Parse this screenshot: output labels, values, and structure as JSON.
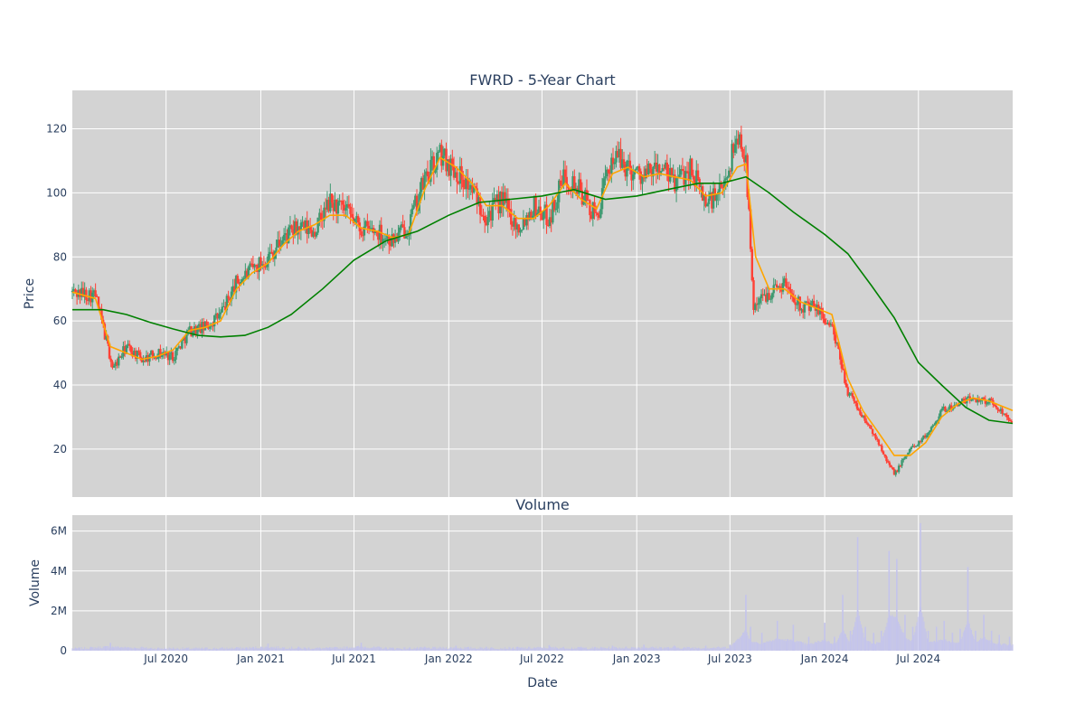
{
  "chart_data": [
    {
      "type": "line",
      "title": "FWRD - 5-Year Chart",
      "ylabel": "Price",
      "ylim": [
        5,
        132
      ],
      "yticks": [
        20,
        40,
        60,
        80,
        100,
        120
      ],
      "grid": true,
      "xrange": [
        "2020-01-01",
        "2024-12-31"
      ],
      "xticks": [
        {
          "date": "2020-07-01",
          "label": "Jul 2020"
        },
        {
          "date": "2021-01-01",
          "label": "Jan 2021"
        },
        {
          "date": "2021-07-01",
          "label": "Jul 2021"
        },
        {
          "date": "2022-01-01",
          "label": "Jan 2022"
        },
        {
          "date": "2022-07-01",
          "label": "Jul 2022"
        },
        {
          "date": "2023-01-01",
          "label": "Jan 2023"
        },
        {
          "date": "2023-07-01",
          "label": "Jul 2023"
        },
        {
          "date": "2024-01-01",
          "label": "Jan 2024"
        },
        {
          "date": "2024-07-01",
          "label": "Jul 2024"
        }
      ],
      "series": [
        {
          "style": "candlestick",
          "dates": [
            "2020-01-01",
            "2020-02-15",
            "2020-03-20",
            "2020-04-15",
            "2020-05-15",
            "2020-06-15",
            "2020-07-15",
            "2020-08-15",
            "2020-09-15",
            "2020-10-15",
            "2020-11-15",
            "2020-12-15",
            "2021-01-15",
            "2021-02-15",
            "2021-03-15",
            "2021-04-15",
            "2021-05-15",
            "2021-06-15",
            "2021-07-15",
            "2021-08-15",
            "2021-09-15",
            "2021-10-15",
            "2021-11-15",
            "2021-12-15",
            "2022-01-15",
            "2022-02-15",
            "2022-03-15",
            "2022-04-15",
            "2022-05-15",
            "2022-06-15",
            "2022-07-15",
            "2022-08-15",
            "2022-09-15",
            "2022-10-15",
            "2022-11-15",
            "2022-12-15",
            "2023-01-15",
            "2023-02-15",
            "2023-03-15",
            "2023-04-15",
            "2023-05-15",
            "2023-06-15",
            "2023-07-15",
            "2023-08-01",
            "2023-08-15",
            "2023-09-15",
            "2023-10-15",
            "2023-11-15",
            "2023-12-15",
            "2024-01-15",
            "2024-02-15",
            "2024-03-15",
            "2024-04-15",
            "2024-05-15",
            "2024-06-15",
            "2024-07-15",
            "2024-08-15",
            "2024-09-15",
            "2024-10-15",
            "2024-11-15",
            "2024-12-31"
          ],
          "values": [
            69,
            68,
            45,
            52,
            48,
            50,
            49,
            57,
            58,
            62,
            72,
            76,
            80,
            86,
            89,
            88,
            97,
            94,
            89,
            88,
            85,
            90,
            104,
            112,
            107,
            101,
            93,
            98,
            89,
            96,
            92,
            106,
            100,
            92,
            112,
            108,
            105,
            108,
            103,
            108,
            97,
            100,
            118,
            112,
            65,
            69,
            72,
            65,
            64,
            58,
            38,
            30,
            22,
            12,
            20,
            24,
            32,
            34,
            36,
            35,
            29
          ]
        },
        {
          "name": "",
          "style": "ma-short",
          "color": "#ffa500",
          "dates": [
            "2020-01-01",
            "2020-02-15",
            "2020-03-15",
            "2020-04-15",
            "2020-05-15",
            "2020-06-15",
            "2020-07-15",
            "2020-08-15",
            "2020-09-15",
            "2020-10-15",
            "2020-11-15",
            "2020-12-15",
            "2021-01-15",
            "2021-02-15",
            "2021-03-15",
            "2021-04-15",
            "2021-05-15",
            "2021-06-15",
            "2021-07-15",
            "2021-08-15",
            "2021-09-15",
            "2021-10-15",
            "2021-11-15",
            "2021-12-15",
            "2022-01-15",
            "2022-02-15",
            "2022-03-15",
            "2022-04-15",
            "2022-05-15",
            "2022-06-15",
            "2022-07-15",
            "2022-08-15",
            "2022-09-15",
            "2022-10-15",
            "2022-11-15",
            "2022-12-15",
            "2023-01-15",
            "2023-02-15",
            "2023-03-15",
            "2023-04-15",
            "2023-05-15",
            "2023-06-15",
            "2023-07-15",
            "2023-08-01",
            "2023-08-20",
            "2023-09-15",
            "2023-10-15",
            "2023-11-15",
            "2023-12-15",
            "2024-01-15",
            "2024-02-15",
            "2024-03-15",
            "2024-04-15",
            "2024-05-15",
            "2024-06-15",
            "2024-07-15",
            "2024-08-15",
            "2024-09-15",
            "2024-10-15",
            "2024-11-15",
            "2024-12-31"
          ],
          "values": [
            69,
            67,
            52,
            50,
            48,
            49,
            51,
            57,
            58,
            60,
            70,
            75,
            78,
            84,
            88,
            90,
            93,
            93,
            89,
            88,
            86,
            87,
            101,
            111,
            108,
            103,
            96,
            96,
            92,
            92,
            96,
            103,
            98,
            95,
            106,
            108,
            105,
            106,
            105,
            104,
            99,
            100,
            108,
            109,
            80,
            70,
            70,
            66,
            64,
            62,
            42,
            32,
            25,
            18,
            18,
            22,
            30,
            34,
            36,
            35,
            32
          ]
        },
        {
          "name": "",
          "style": "ma-long",
          "color": "#008000",
          "dates": [
            "2020-01-01",
            "2020-03-01",
            "2020-04-15",
            "2020-06-01",
            "2020-07-15",
            "2020-09-01",
            "2020-10-15",
            "2020-12-01",
            "2021-01-15",
            "2021-03-01",
            "2021-05-01",
            "2021-07-01",
            "2021-09-01",
            "2021-11-01",
            "2022-01-01",
            "2022-03-01",
            "2022-05-01",
            "2022-07-01",
            "2022-09-01",
            "2022-11-01",
            "2023-01-01",
            "2023-03-01",
            "2023-05-01",
            "2023-06-15",
            "2023-08-01",
            "2023-09-15",
            "2023-11-01",
            "2024-01-01",
            "2024-02-15",
            "2024-04-01",
            "2024-05-15",
            "2024-07-01",
            "2024-08-15",
            "2024-10-01",
            "2024-11-15",
            "2024-12-31"
          ],
          "values": [
            63.5,
            63.5,
            62,
            59.5,
            57.5,
            55.5,
            55,
            55.5,
            58,
            62,
            70,
            79,
            85,
            88,
            93,
            97,
            98,
            99,
            101,
            98,
            99,
            101,
            103,
            103,
            105,
            100,
            94,
            87,
            81,
            71,
            61,
            47,
            40,
            33,
            29,
            28
          ]
        }
      ]
    },
    {
      "type": "bar",
      "title": "Volume",
      "xlabel": "Date",
      "ylabel": "Volume",
      "ylim": [
        0,
        6800000
      ],
      "yticks": [
        0,
        2000000,
        4000000,
        6000000
      ],
      "ytick_labels": [
        "0",
        "2M",
        "4M",
        "6M"
      ],
      "grid": true,
      "color": "#c4c4ec",
      "dates": [
        "2020-01-15",
        "2020-03-15",
        "2020-05-15",
        "2020-07-15",
        "2020-09-15",
        "2020-11-15",
        "2021-01-15",
        "2021-03-15",
        "2021-05-15",
        "2021-07-15",
        "2021-09-15",
        "2021-11-15",
        "2022-01-15",
        "2022-03-15",
        "2022-05-15",
        "2022-07-15",
        "2022-09-15",
        "2022-11-15",
        "2023-01-15",
        "2023-03-15",
        "2023-05-15",
        "2023-07-01",
        "2023-08-01",
        "2023-08-10",
        "2023-09-01",
        "2023-10-01",
        "2023-11-01",
        "2023-12-01",
        "2024-01-01",
        "2024-01-20",
        "2024-02-05",
        "2024-02-20",
        "2024-03-05",
        "2024-03-20",
        "2024-04-05",
        "2024-04-20",
        "2024-05-05",
        "2024-05-20",
        "2024-06-05",
        "2024-06-20",
        "2024-07-05",
        "2024-07-20",
        "2024-08-05",
        "2024-08-20",
        "2024-09-05",
        "2024-09-20",
        "2024-10-05",
        "2024-10-20",
        "2024-11-05",
        "2024-11-20",
        "2024-12-05",
        "2024-12-25"
      ],
      "values": [
        150000,
        400000,
        200000,
        150000,
        150000,
        180000,
        350000,
        200000,
        180000,
        400000,
        150000,
        200000,
        250000,
        200000,
        200000,
        280000,
        200000,
        250000,
        300000,
        250000,
        250000,
        300000,
        2800000,
        1200000,
        900000,
        1500000,
        1300000,
        700000,
        1400000,
        700000,
        2800000,
        1000000,
        5700000,
        1200000,
        900000,
        1000000,
        5000000,
        4600000,
        1800000,
        1200000,
        6400000,
        1000000,
        1200000,
        1500000,
        900000,
        1100000,
        4200000,
        1000000,
        1800000,
        1000000,
        800000,
        700000
      ]
    }
  ]
}
